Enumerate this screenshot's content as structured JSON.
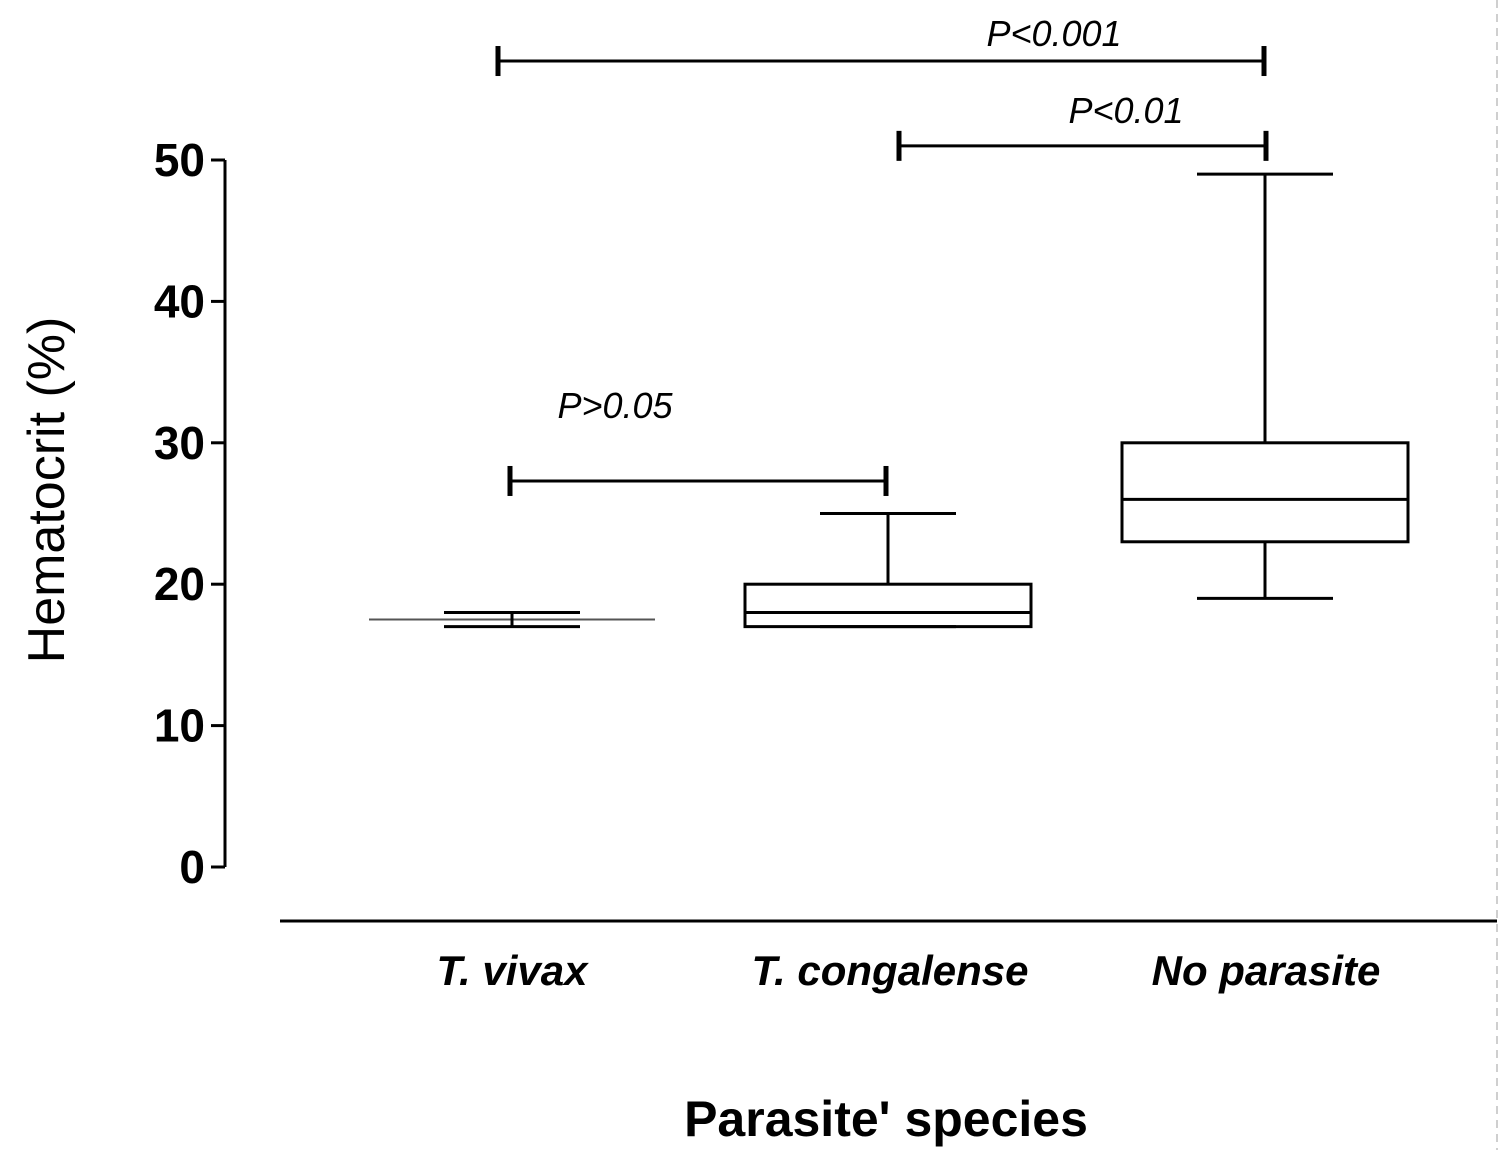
{
  "chart_data": {
    "type": "box",
    "title": "",
    "xlabel": "Parasite' species",
    "ylabel": "Hematocrit (%)",
    "ylim": [
      0,
      50
    ],
    "yticks": [
      0,
      10,
      20,
      30,
      40,
      50
    ],
    "ytick_labels": [
      "0",
      "10",
      "20",
      "30",
      "40",
      "50"
    ],
    "grid": false,
    "categories": [
      "T. vivax",
      "T. congalense",
      "No parasite"
    ],
    "boxes": [
      {
        "name": "T. vivax",
        "min": 17,
        "q1": 17.5,
        "median": 17.5,
        "q3": 17.5,
        "max": 18
      },
      {
        "name": "T. congalense",
        "min": 17,
        "q1": 17,
        "median": 18,
        "q3": 20,
        "max": 25
      },
      {
        "name": "No parasite",
        "min": 19,
        "q1": 23,
        "median": 26,
        "q3": 30,
        "max": 49
      }
    ],
    "annotations": [
      {
        "text": "P>0.05",
        "from": "T. vivax",
        "to": "T. congalense",
        "y": 27.3
      },
      {
        "text": "P<0.01",
        "from": "T. congalense",
        "to": "No parasite",
        "y": 51
      },
      {
        "text": "P<0.001",
        "from": "T. vivax",
        "to": "No parasite",
        "y": 57
      }
    ]
  }
}
